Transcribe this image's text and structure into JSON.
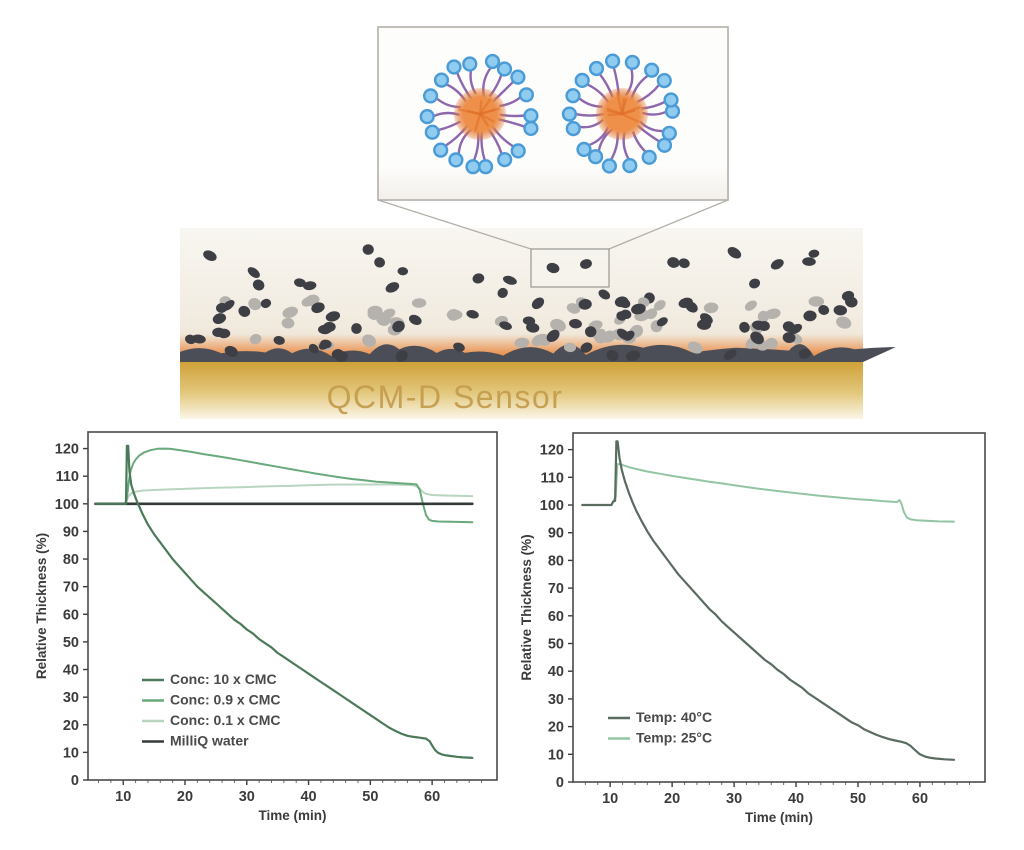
{
  "illustration": {
    "sensor_label": "QCM-D Sensor",
    "colors": {
      "scene_top": "#f8f6f1",
      "scene_mid": "#f2ece2",
      "scene_low": "#eddfcb",
      "dark_particle": "#3e3f45",
      "light_particle": "#b5b2ad",
      "adsorbed_layer": "#4b4e57",
      "glow_orange": "#e8741f",
      "sensor_gold_top": "#cfa139",
      "sensor_gold_bottom": "#fbf6e8",
      "sensor_label_color": "#c59e4e",
      "callout_border": "#b3afa8",
      "callout_fill_top": "#fdfdfc",
      "callout_fill_bottom": "#f3f0ea",
      "micelle_core": "#ee9049",
      "micelle_core_edge": "#e06e27",
      "micelle_tail": "#8257a3",
      "micelle_head_fill": "#90ccef",
      "micelle_head_edge": "#4a9bd6"
    }
  },
  "chart_data": [
    {
      "type": "line",
      "title": "",
      "xlabel": "Time (min)",
      "ylabel": "Relative Thickness (%)",
      "xlim": [
        4.3,
        70.5
      ],
      "ylim": [
        0,
        126
      ],
      "xticks": [
        10,
        20,
        30,
        40,
        50,
        60
      ],
      "yticks": [
        0,
        10,
        20,
        30,
        40,
        50,
        60,
        70,
        80,
        90,
        100,
        110,
        120
      ],
      "grid": false,
      "legend_position": "lower-left",
      "draw_order": [
        2,
        1,
        3,
        0
      ],
      "series": [
        {
          "name": "Conc: 10 x CMC",
          "color": "#4b7a59",
          "width": 2.2,
          "points": [
            [
              5.5,
              100
            ],
            [
              10.2,
              100
            ],
            [
              10.45,
              100
            ],
            [
              10.6,
              121
            ],
            [
              10.8,
              121
            ],
            [
              11.0,
              112
            ],
            [
              11.3,
              107
            ],
            [
              11.7,
              104
            ],
            [
              12.2,
              101
            ],
            [
              12.7,
              98.5
            ],
            [
              13.2,
              96
            ],
            [
              14,
              92.5
            ],
            [
              15,
              89
            ],
            [
              16,
              86
            ],
            [
              17,
              83
            ],
            [
              18,
              80
            ],
            [
              19,
              77.5
            ],
            [
              20,
              75
            ],
            [
              21,
              72.5
            ],
            [
              22,
              70
            ],
            [
              23,
              68
            ],
            [
              24,
              66
            ],
            [
              25,
              64
            ],
            [
              26,
              62
            ],
            [
              27,
              60
            ],
            [
              28,
              58
            ],
            [
              29,
              56.5
            ],
            [
              30,
              54.5
            ],
            [
              31,
              53
            ],
            [
              32,
              51
            ],
            [
              33,
              49.5
            ],
            [
              34,
              48
            ],
            [
              35,
              46
            ],
            [
              36,
              44.5
            ],
            [
              37,
              43
            ],
            [
              38,
              41.5
            ],
            [
              39,
              40
            ],
            [
              40,
              38.5
            ],
            [
              41,
              37
            ],
            [
              42,
              35.5
            ],
            [
              43,
              34
            ],
            [
              44,
              32.5
            ],
            [
              45,
              31
            ],
            [
              46,
              29.5
            ],
            [
              47,
              28
            ],
            [
              48,
              26.5
            ],
            [
              49,
              25
            ],
            [
              50,
              23.5
            ],
            [
              51,
              22
            ],
            [
              52,
              20.5
            ],
            [
              53,
              19
            ],
            [
              54,
              17.8
            ],
            [
              55,
              16.8
            ],
            [
              56,
              16
            ],
            [
              57,
              15.6
            ],
            [
              58,
              15.3
            ],
            [
              59,
              15
            ],
            [
              59.6,
              14
            ],
            [
              60,
              12.5
            ],
            [
              60.5,
              10.8
            ],
            [
              61,
              9.8
            ],
            [
              61.5,
              9.3
            ],
            [
              62,
              9
            ],
            [
              63,
              8.7
            ],
            [
              64,
              8.4
            ],
            [
              65,
              8.2
            ],
            [
              66,
              8.1
            ],
            [
              66.5,
              8
            ]
          ]
        },
        {
          "name": "Conc: 0.9 x CMC",
          "color": "#68aa7c",
          "width": 2,
          "points": [
            [
              5.5,
              100
            ],
            [
              10.3,
              100
            ],
            [
              10.6,
              102
            ],
            [
              10.9,
              108
            ],
            [
              11.2,
              112
            ],
            [
              11.6,
              114.5
            ],
            [
              12,
              116
            ],
            [
              12.6,
              117.5
            ],
            [
              13.4,
              118.6
            ],
            [
              14.4,
              119.4
            ],
            [
              15.5,
              119.9
            ],
            [
              16.5,
              120
            ],
            [
              17.5,
              119.9
            ],
            [
              19,
              119.5
            ],
            [
              21,
              118.8
            ],
            [
              23,
              118
            ],
            [
              25,
              117.3
            ],
            [
              27,
              116.6
            ],
            [
              29,
              115.8
            ],
            [
              31,
              115
            ],
            [
              33,
              114.2
            ],
            [
              35,
              113.4
            ],
            [
              37,
              112.6
            ],
            [
              39,
              111.8
            ],
            [
              41,
              111
            ],
            [
              43,
              110.3
            ],
            [
              45,
              109.6
            ],
            [
              47,
              109
            ],
            [
              49,
              108.5
            ],
            [
              51,
              108
            ],
            [
              53,
              107.7
            ],
            [
              55,
              107.4
            ],
            [
              56.5,
              107.2
            ],
            [
              57.5,
              107
            ],
            [
              58,
              105
            ],
            [
              58.5,
              100
            ],
            [
              59,
              96
            ],
            [
              59.5,
              94.3
            ],
            [
              60,
              93.8
            ],
            [
              61,
              93.6
            ],
            [
              63,
              93.5
            ],
            [
              65,
              93.4
            ],
            [
              66.5,
              93.3
            ]
          ]
        },
        {
          "name": "Conc: 0.1 x CMC",
          "color": "#b9d5c0",
          "width": 2,
          "points": [
            [
              5.5,
              100
            ],
            [
              10.4,
              100
            ],
            [
              10.8,
              102.5
            ],
            [
              11.3,
              103.8
            ],
            [
              12,
              104.4
            ],
            [
              13,
              104.8
            ],
            [
              15,
              105
            ],
            [
              18,
              105.3
            ],
            [
              21,
              105.5
            ],
            [
              25,
              105.8
            ],
            [
              29,
              106
            ],
            [
              33,
              106.3
            ],
            [
              37,
              106.5
            ],
            [
              41,
              106.8
            ],
            [
              45,
              107
            ],
            [
              49,
              107
            ],
            [
              53,
              107
            ],
            [
              55.5,
              106.9
            ],
            [
              57,
              106.7
            ],
            [
              57.8,
              106
            ],
            [
              58.4,
              104.5
            ],
            [
              59,
              103.6
            ],
            [
              60,
              103.2
            ],
            [
              62,
              103
            ],
            [
              64,
              102.9
            ],
            [
              66.5,
              102.8
            ]
          ]
        },
        {
          "name": "MilliQ water",
          "color": "#343b37",
          "width": 2.6,
          "points": [
            [
              5.5,
              100
            ],
            [
              66.5,
              100
            ]
          ]
        }
      ]
    },
    {
      "type": "line",
      "title": "",
      "xlabel": "Time (min)",
      "ylabel": "Relative Thickness (%)",
      "xlim": [
        4.0,
        70.5
      ],
      "ylim": [
        0,
        126
      ],
      "xticks": [
        10,
        20,
        30,
        40,
        50,
        60
      ],
      "yticks": [
        0,
        10,
        20,
        30,
        40,
        50,
        60,
        70,
        80,
        90,
        100,
        110,
        120
      ],
      "grid": false,
      "legend_position": "lower-left",
      "draw_order": [
        1,
        0
      ],
      "series": [
        {
          "name": "Temp: 40°C",
          "color": "#5a6b60",
          "width": 2.2,
          "points": [
            [
              5.5,
              100
            ],
            [
              10.2,
              100
            ],
            [
              10.5,
              101.3
            ],
            [
              10.8,
              101.5
            ],
            [
              11.0,
              123
            ],
            [
              11.2,
              123
            ],
            [
              11.5,
              117
            ],
            [
              11.9,
              112.5
            ],
            [
              12.4,
              108.5
            ],
            [
              13,
              104.5
            ],
            [
              13.6,
              101
            ],
            [
              14.3,
              97.5
            ],
            [
              15,
              94.5
            ],
            [
              16,
              90.5
            ],
            [
              17,
              87
            ],
            [
              18,
              84
            ],
            [
              19,
              81
            ],
            [
              20,
              78
            ],
            [
              21,
              75
            ],
            [
              22,
              72.5
            ],
            [
              23,
              70
            ],
            [
              24,
              67.5
            ],
            [
              25,
              65
            ],
            [
              26,
              62.5
            ],
            [
              27,
              60.5
            ],
            [
              28,
              58
            ],
            [
              29,
              56
            ],
            [
              30,
              54
            ],
            [
              31,
              52
            ],
            [
              32,
              50
            ],
            [
              33,
              48
            ],
            [
              34,
              46
            ],
            [
              35,
              44
            ],
            [
              36,
              42.5
            ],
            [
              37,
              40.5
            ],
            [
              38,
              39
            ],
            [
              39,
              37
            ],
            [
              40,
              35.5
            ],
            [
              41,
              34
            ],
            [
              42,
              32
            ],
            [
              43,
              30.5
            ],
            [
              44,
              29
            ],
            [
              45,
              27.5
            ],
            [
              46,
              26
            ],
            [
              47,
              24.5
            ],
            [
              48,
              23
            ],
            [
              49,
              21.5
            ],
            [
              50,
              20.5
            ],
            [
              51,
              19
            ],
            [
              52,
              18
            ],
            [
              53,
              17
            ],
            [
              54,
              16.2
            ],
            [
              55,
              15.5
            ],
            [
              56,
              15
            ],
            [
              57,
              14.5
            ],
            [
              57.8,
              14
            ],
            [
              58.5,
              13
            ],
            [
              59.2,
              11.5
            ],
            [
              60,
              10
            ],
            [
              60.8,
              9.2
            ],
            [
              61.5,
              8.8
            ],
            [
              62.5,
              8.5
            ],
            [
              64,
              8.2
            ],
            [
              65.5,
              8
            ]
          ]
        },
        {
          "name": "Temp: 25°C",
          "color": "#93c4a3",
          "width": 2,
          "points": [
            [
              5.5,
              100
            ],
            [
              10.2,
              100
            ],
            [
              10.5,
              101.3
            ],
            [
              10.9,
              103
            ],
            [
              11.15,
              114.7
            ],
            [
              11.6,
              114.8
            ],
            [
              12.2,
              114.3
            ],
            [
              13,
              113.7
            ],
            [
              14,
              113.1
            ],
            [
              15,
              112.6
            ],
            [
              16,
              112.1
            ],
            [
              17,
              111.7
            ],
            [
              18,
              111.3
            ],
            [
              19,
              110.9
            ],
            [
              20,
              110.5
            ],
            [
              22,
              109.8
            ],
            [
              24,
              109.1
            ],
            [
              26,
              108.4
            ],
            [
              28,
              107.8
            ],
            [
              30,
              107.1
            ],
            [
              32,
              106.5
            ],
            [
              34,
              105.9
            ],
            [
              36,
              105.3
            ],
            [
              38,
              104.8
            ],
            [
              40,
              104.3
            ],
            [
              42,
              103.8
            ],
            [
              44,
              103.3
            ],
            [
              46,
              102.9
            ],
            [
              48,
              102.5
            ],
            [
              50,
              102.1
            ],
            [
              52,
              101.8
            ],
            [
              54,
              101.4
            ],
            [
              55.5,
              101.2
            ],
            [
              56.3,
              101.1
            ],
            [
              56.7,
              101.8
            ],
            [
              57,
              100.5
            ],
            [
              57.4,
              97.5
            ],
            [
              57.9,
              95.5
            ],
            [
              58.5,
              94.8
            ],
            [
              59.5,
              94.5
            ],
            [
              61,
              94.3
            ],
            [
              63,
              94.1
            ],
            [
              65.5,
              94
            ]
          ]
        }
      ]
    }
  ]
}
